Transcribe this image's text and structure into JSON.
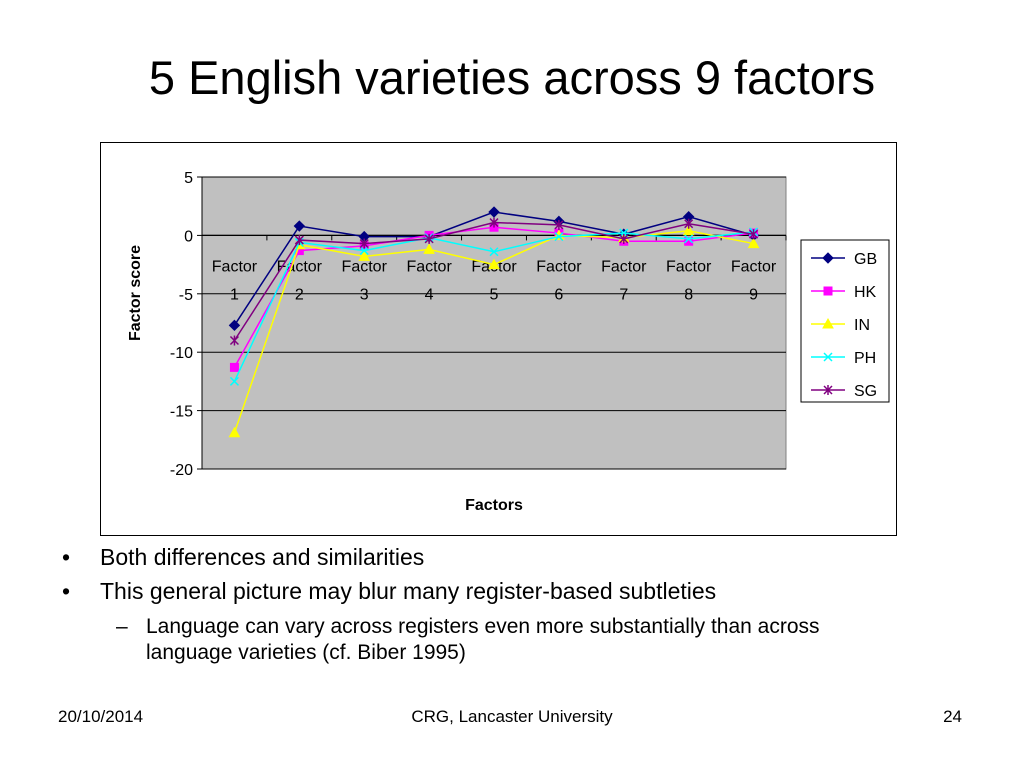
{
  "slide": {
    "title": "5 English varieties across 9 factors",
    "bullets": [
      "Both differences and similarities",
      "This general picture may blur many register-based subtleties"
    ],
    "sub_bullet": "Language can vary across registers even more substantially than across language varieties (cf. Biber 1995)",
    "bullet_mark": "•",
    "sub_mark": "–"
  },
  "footer": {
    "date": "20/10/2014",
    "center": "CRG, Lancaster University",
    "page": "24"
  },
  "chart_data": {
    "type": "line",
    "categories": [
      "Factor 1",
      "Factor 2",
      "Factor 3",
      "Factor 4",
      "Factor 5",
      "Factor 6",
      "Factor 7",
      "Factor 8",
      "Factor 9"
    ],
    "xlabel": "Factors",
    "ylabel": "Factor score",
    "ylim": [
      -20,
      5
    ],
    "yticks": [
      5,
      0,
      -5,
      -10,
      -15,
      -20
    ],
    "grid": true,
    "legend": "right",
    "plot_background": "#c0c0c0",
    "series": [
      {
        "name": "GB",
        "color": "#000080",
        "marker": "diamond",
        "values": [
          -7.7,
          0.8,
          -0.1,
          -0.1,
          2.0,
          1.2,
          0.1,
          1.6,
          0.0
        ]
      },
      {
        "name": "HK",
        "color": "#ff00ff",
        "marker": "square",
        "values": [
          -11.3,
          -1.3,
          -0.9,
          0.0,
          0.7,
          0.2,
          -0.5,
          -0.5,
          0.2
        ]
      },
      {
        "name": "IN",
        "color": "#ffff00",
        "marker": "triangle",
        "values": [
          -16.9,
          -0.8,
          -1.8,
          -1.2,
          -2.5,
          0.0,
          -0.2,
          0.4,
          -0.7
        ]
      },
      {
        "name": "PH",
        "color": "#00ffff",
        "marker": "x",
        "values": [
          -12.5,
          -0.6,
          -1.3,
          -0.2,
          -1.4,
          -0.1,
          0.2,
          -0.3,
          0.3
        ]
      },
      {
        "name": "SG",
        "color": "#800080",
        "marker": "star",
        "values": [
          -9.0,
          -0.4,
          -0.7,
          -0.3,
          1.1,
          0.9,
          -0.3,
          1.0,
          0.1
        ]
      }
    ]
  }
}
